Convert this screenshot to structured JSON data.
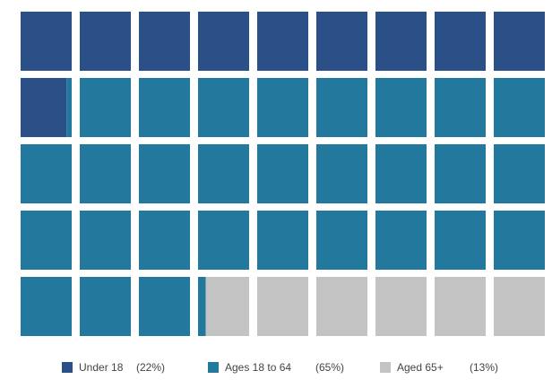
{
  "chart_data": {
    "type": "waffle",
    "rows": 5,
    "columns": 9,
    "fill_order": "row-major, left-to-right, top-to-bottom",
    "series": [
      {
        "name": "Under 18",
        "pct_label": "(22%)",
        "value": 22,
        "color": "#2b5088"
      },
      {
        "name": "Ages 18 to 64",
        "pct_label": "(65%)",
        "value": 65,
        "color": "#23789e"
      },
      {
        "name": "Aged 65+",
        "pct_label": "(13%)",
        "value": 13,
        "color": "#c3c3c3"
      }
    ],
    "legend": {
      "position": "bottom"
    }
  }
}
